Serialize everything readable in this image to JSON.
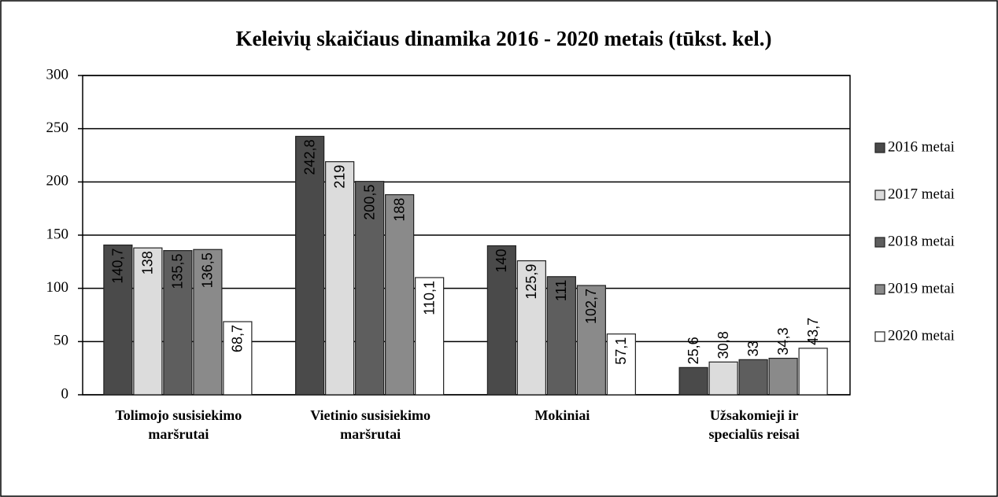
{
  "chart_data": {
    "type": "bar",
    "title": "Keleivių skaičiaus dinamika 2016 - 2020 metais (tūkst. kel.)",
    "categories": [
      [
        "Tolimojo susisiekimo",
        "maršrutai"
      ],
      [
        "Vietinio susisiekimo",
        "maršrutai"
      ],
      [
        "Mokiniai"
      ],
      [
        "Užsakomieji ir",
        "specialūs reisai"
      ]
    ],
    "series": [
      {
        "name": "2016 metai",
        "color": "#4a4a4a",
        "values": [
          140.7,
          242.8,
          140,
          25.6
        ],
        "value_labels": [
          "140,7",
          "242,8",
          "140",
          "25,6"
        ]
      },
      {
        "name": "2017 metai",
        "color": "#dcdcdc",
        "values": [
          138,
          219,
          125.9,
          30.8
        ],
        "value_labels": [
          "138",
          "219",
          "125,9",
          "30,8"
        ]
      },
      {
        "name": "2018 metai",
        "color": "#5e5e5e",
        "values": [
          135.5,
          200.5,
          111,
          33
        ],
        "value_labels": [
          "135,5",
          "200,5",
          "111",
          "33"
        ]
      },
      {
        "name": "2019 metai",
        "color": "#8a8a8a",
        "values": [
          136.5,
          188,
          102.7,
          34.3
        ],
        "value_labels": [
          "136,5",
          "188",
          "102,7",
          "34,3"
        ]
      },
      {
        "name": "2020 metai",
        "color": "#ffffff",
        "values": [
          68.7,
          110.1,
          57.1,
          43.7
        ],
        "value_labels": [
          "68,7",
          "110,1",
          "57,1",
          "43,7"
        ]
      }
    ],
    "ylim": [
      0,
      300
    ],
    "yticks": [
      0,
      50,
      100,
      150,
      200,
      250,
      300
    ],
    "grid": true,
    "legend": "right"
  }
}
